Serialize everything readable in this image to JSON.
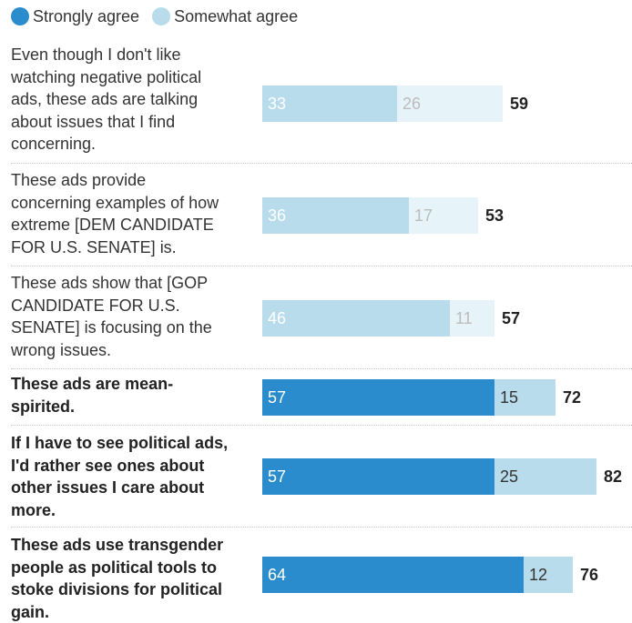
{
  "legend": {
    "strong_label": "Strongly agree",
    "somewhat_label": "Somewhat agree"
  },
  "colors": {
    "strong": "#2a8ccc",
    "somewhat": "#b8dcec",
    "somewhat_faded": "#e6f3f9",
    "faded_text": "#bcbcbc",
    "label_on_strong": "#ffffff",
    "label_on_light": "#333333"
  },
  "chart_data": {
    "type": "bar",
    "orientation": "horizontal",
    "stacked": true,
    "categories": [
      "Even though I don't like watching negative political ads, these ads are talking about issues that I find concerning.",
      "These ads provide concerning examples of how extreme [DEM CANDIDATE FOR U.S. SENATE] is.",
      "These ads show that [GOP CANDIDATE FOR U.S. SENATE] is focusing on the wrong issues.",
      "These ads are mean-spirited.",
      "If I have to see political ads, I'd rather see ones about other issues I care about more.",
      "These ads use transgender people as political tools to stoke divisions for political gain."
    ],
    "series": [
      {
        "name": "Strongly agree",
        "values": [
          33,
          36,
          46,
          57,
          57,
          64
        ]
      },
      {
        "name": "Somewhat agree",
        "values": [
          26,
          17,
          11,
          15,
          25,
          12
        ]
      }
    ],
    "totals": [
      59,
      53,
      57,
      72,
      82,
      76
    ],
    "highlighted": [
      false,
      false,
      false,
      true,
      true,
      true
    ],
    "legend_position": "top-left",
    "grid": false
  },
  "rows": [
    {
      "label_lines": [
        "Even though I don't like",
        "watching negative political",
        "ads, these ads are talking",
        "about issues that I find",
        "concerning."
      ],
      "strong": "33",
      "somewhat": "26",
      "total": "59"
    },
    {
      "label_lines": [
        "These ads provide",
        "concerning examples of how",
        "extreme [DEM CANDIDATE",
        "FOR U.S. SENATE] is."
      ],
      "strong": "36",
      "somewhat": "17",
      "total": "53"
    },
    {
      "label_lines": [
        "These ads show that [GOP",
        "CANDIDATE FOR U.S.",
        "SENATE] is focusing on the",
        "wrong issues."
      ],
      "strong": "46",
      "somewhat": "11",
      "total": "57"
    },
    {
      "label_lines": [
        "These ads are mean-",
        "spirited."
      ],
      "strong": "57",
      "somewhat": "15",
      "total": "72"
    },
    {
      "label_lines": [
        "If I have to see political ads,",
        "I'd rather see ones about",
        "other issues I care about",
        "more."
      ],
      "strong": "57",
      "somewhat": "25",
      "total": "82"
    },
    {
      "label_lines": [
        "These ads use transgender",
        "people as political tools to",
        "stoke divisions for political",
        "gain."
      ],
      "strong": "64",
      "somewhat": "12",
      "total": "76"
    }
  ]
}
